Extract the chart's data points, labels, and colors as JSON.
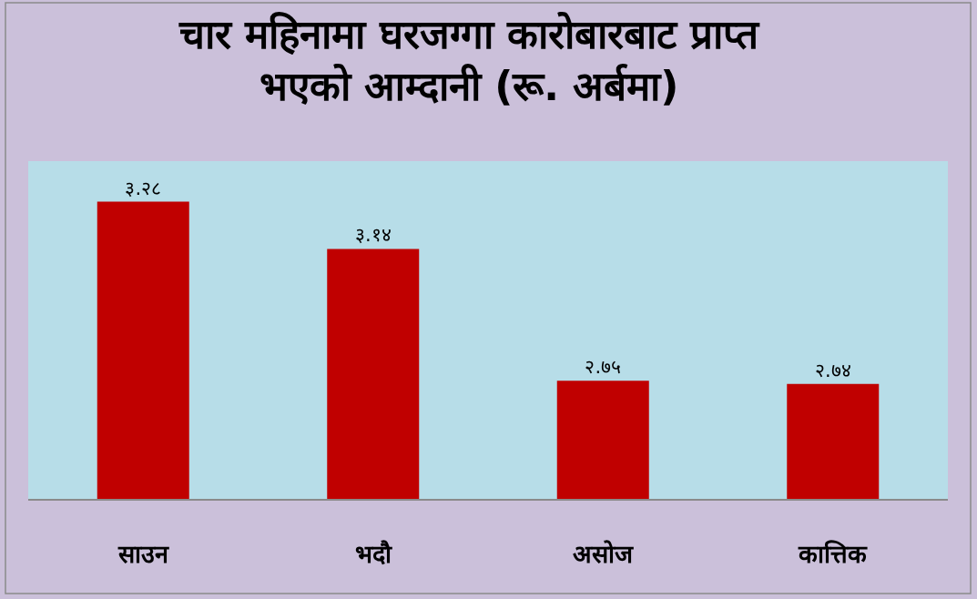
{
  "chart_data": {
    "type": "bar",
    "title": "चार महिनामा घरजग्गा कारोबारबाट प्राप्त\nभएको आम्दानी (रू. अर्बमा)",
    "categories": [
      "साउन",
      "भदौ",
      "असोज",
      "कात्तिक"
    ],
    "values": [
      3.28,
      3.14,
      2.75,
      2.74
    ],
    "value_labels": [
      "३.२८",
      "३.१४",
      "२.७५",
      "२.७४"
    ],
    "color": "#c00000",
    "ylim": [
      2.4,
      3.4
    ]
  }
}
